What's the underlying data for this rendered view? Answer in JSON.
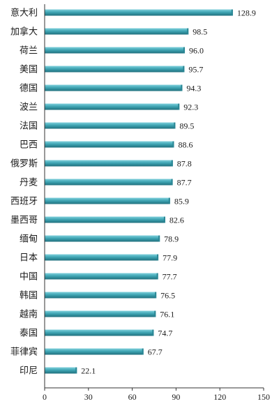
{
  "chart_data": {
    "type": "bar",
    "orientation": "horizontal",
    "categories": [
      "意大利",
      "加拿大",
      "荷兰",
      "美国",
      "德国",
      "波兰",
      "法国",
      "巴西",
      "俄罗斯",
      "丹麦",
      "西班牙",
      "墨西哥",
      "缅甸",
      "日本",
      "中国",
      "韩国",
      "越南",
      "泰国",
      "菲律宾",
      "印尼"
    ],
    "values": [
      128.9,
      98.5,
      96.0,
      95.7,
      94.3,
      92.3,
      89.5,
      88.6,
      87.8,
      87.7,
      85.9,
      82.6,
      78.9,
      77.9,
      77.7,
      76.5,
      76.1,
      74.7,
      67.7,
      22.1
    ],
    "value_labels": [
      "128.9",
      "98.5",
      "96.0",
      "95.7",
      "94.3",
      "92.3",
      "89.5",
      "88.6",
      "87.8",
      "87.7",
      "85.9",
      "82.6",
      "78.9",
      "77.9",
      "77.7",
      "76.5",
      "76.1",
      "74.7",
      "67.7",
      "22.1"
    ],
    "xticks": [
      "0",
      "30",
      "60",
      "90",
      "120",
      "150"
    ],
    "tick_values": [
      0,
      30,
      60,
      90,
      120,
      150
    ],
    "xlim": [
      0,
      150
    ],
    "title": "",
    "xlabel": "",
    "ylabel": "",
    "grid": false,
    "colors": {
      "bar_light": "#7fd0dc",
      "bar_main": "#3fa5b4",
      "bar_dark": "#1f6f7c",
      "bar_end": "#2a8694"
    }
  }
}
